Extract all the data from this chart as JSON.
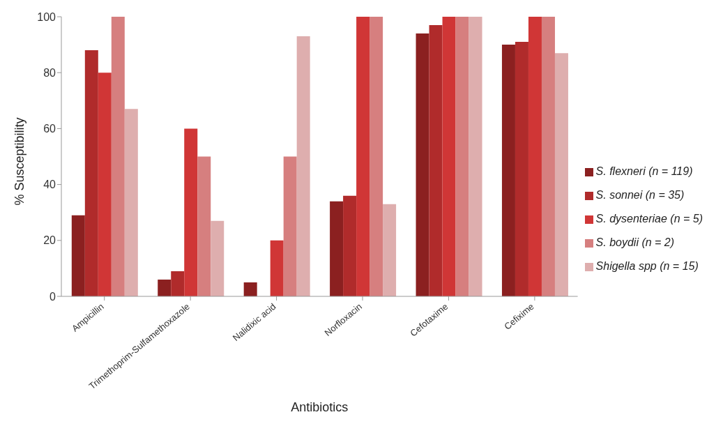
{
  "chart_data": {
    "type": "bar",
    "xlabel": "Antibiotics",
    "ylabel": "% Susceptibility",
    "categories": [
      "Ampicillin",
      "Trimethoprim-Sulfamethoxazole",
      "Nalidixic acid",
      "Norfloxacin",
      "Cefotaxime",
      "Cefixime"
    ],
    "series": [
      {
        "name": "S. flexneri (n = 119)",
        "color": "#8b2020",
        "values": [
          29,
          6,
          5,
          34,
          94,
          90
        ]
      },
      {
        "name": "S. sonnei (n = 35)",
        "color": "#b02b2b",
        "values": [
          88,
          9,
          0,
          36,
          97,
          91
        ]
      },
      {
        "name": "S. dysenteriae (n = 5)",
        "color": "#d03636",
        "values": [
          80,
          60,
          20,
          100,
          100,
          100
        ]
      },
      {
        "name": "S. boydii (n = 2)",
        "color": "#d67f7f",
        "values": [
          100,
          50,
          50,
          100,
          100,
          100
        ]
      },
      {
        "name": "Shigella spp (n = 15)",
        "color": "#deaeae",
        "values": [
          67,
          27,
          93,
          33,
          100,
          87
        ]
      }
    ],
    "ylim": [
      0,
      100
    ],
    "yticks": [
      0,
      20,
      40,
      60,
      80,
      100
    ],
    "grid": false,
    "legend": "right"
  }
}
